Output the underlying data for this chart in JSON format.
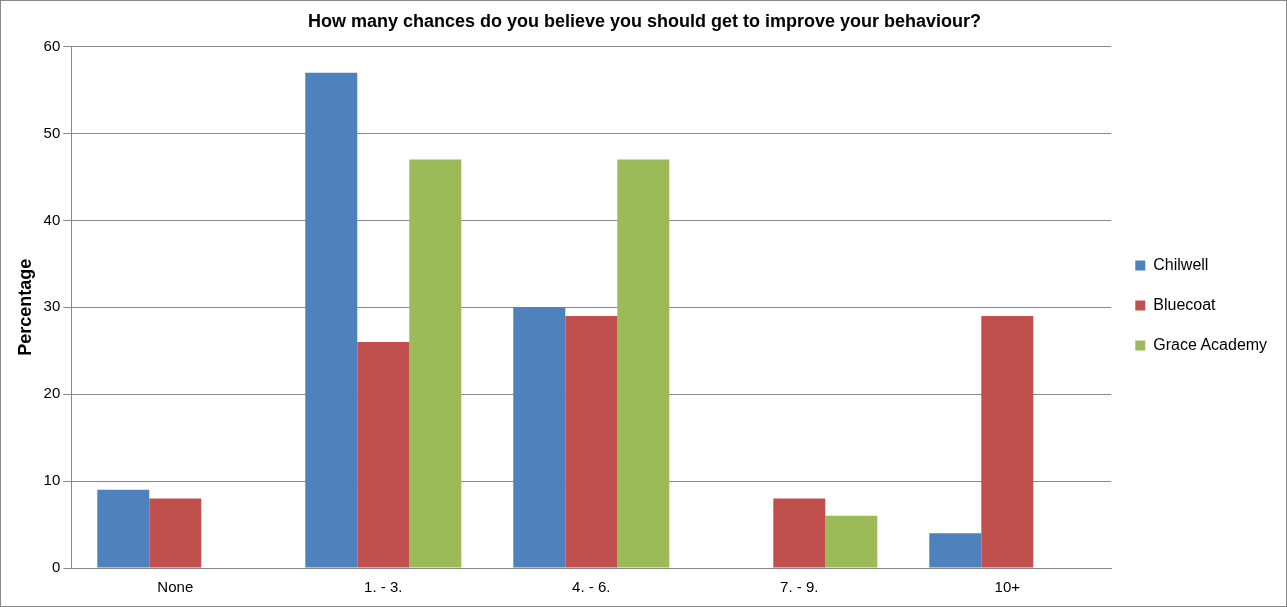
{
  "chart_data": {
    "type": "bar",
    "title": "How many chances do you believe you should get to improve your behaviour?",
    "ylabel": "Percentage",
    "categories": [
      "None",
      "1. - 3.",
      "4. - 6.",
      "7. - 9.",
      "10+"
    ],
    "series": [
      {
        "name": "Chilwell",
        "color": "#4f81bd",
        "values": [
          9,
          57,
          30,
          0,
          4
        ]
      },
      {
        "name": "Bluecoat",
        "color": "#c0504d",
        "values": [
          8,
          26,
          29,
          8,
          29
        ]
      },
      {
        "name": "Grace Academy",
        "color": "#9bbb59",
        "values": [
          0,
          47,
          47,
          6,
          0
        ]
      }
    ],
    "ylim": [
      0,
      60
    ],
    "yticks": [
      0,
      10,
      20,
      30,
      40,
      50,
      60
    ],
    "grid": "y",
    "legend": "right"
  }
}
